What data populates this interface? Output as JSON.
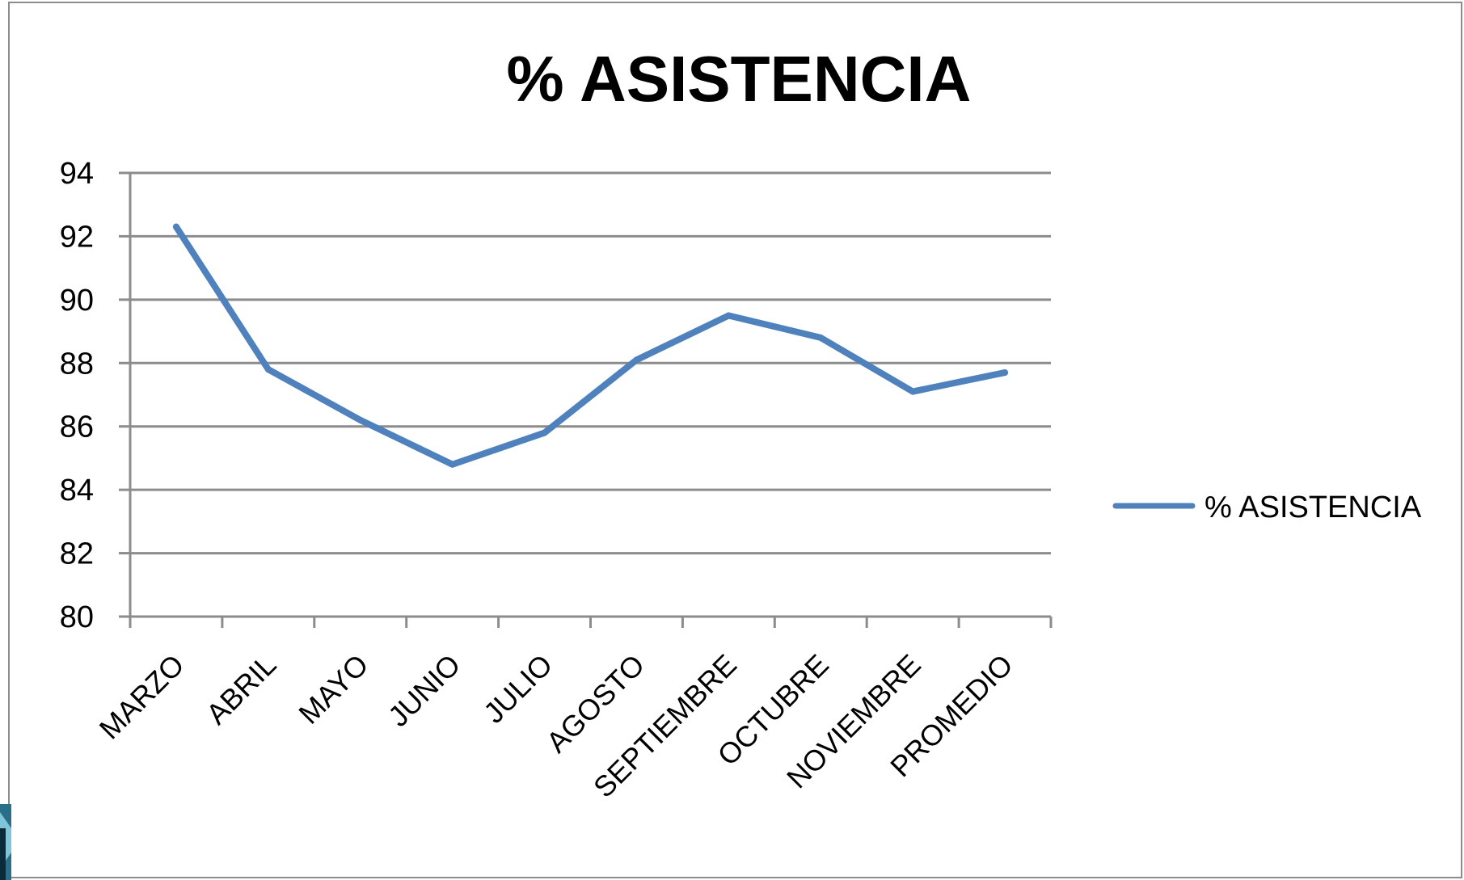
{
  "chart_data": {
    "type": "line",
    "title": "% ASISTENCIA",
    "xlabel": "",
    "ylabel": "",
    "categories": [
      "MARZO",
      "ABRIL",
      "MAYO",
      "JUNIO",
      "JULIO",
      "AGOSTO",
      "SEPTIEMBRE",
      "OCTUBRE",
      "NOVIEMBRE",
      "PROMEDIO"
    ],
    "series": [
      {
        "name": "% ASISTENCIA",
        "color": "#4f81bd",
        "values": [
          92.3,
          87.8,
          86.2,
          84.8,
          85.8,
          88.1,
          89.5,
          88.8,
          87.1,
          87.7
        ]
      }
    ],
    "ylim": [
      80,
      94
    ],
    "yticks": [
      80,
      82,
      84,
      86,
      88,
      90,
      92,
      94
    ],
    "grid": true,
    "legend": "right"
  }
}
